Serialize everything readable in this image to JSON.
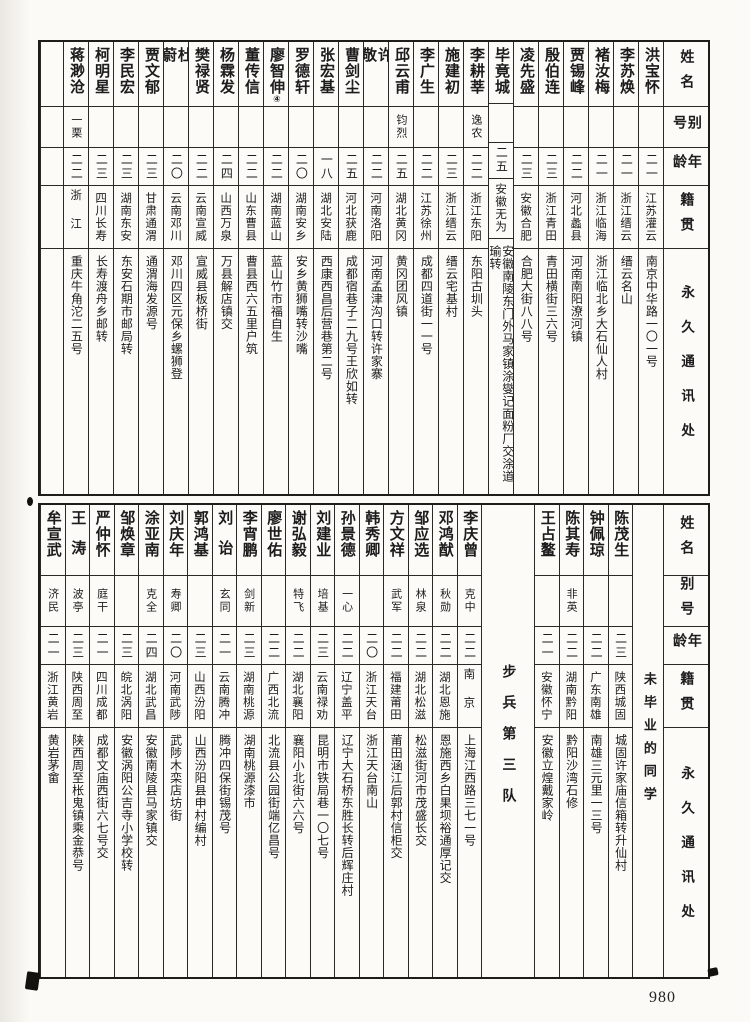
{
  "colors": {
    "paper": "#fbfaf6",
    "ink": "#1c1c1c",
    "border": "#2b2925"
  },
  "page_number": "980",
  "headers": {
    "name": "姓名",
    "alias": "别号",
    "age": "年龄",
    "native": "籍贯",
    "address": "永久通讯处"
  },
  "section_labels": {
    "not_graduated": "未毕业的同学",
    "squad": "步兵第三队"
  },
  "top_people": [
    {
      "name": "洪宝怀",
      "alias": "",
      "age": "二一",
      "native": "江苏灌云",
      "address": "南京中华路一〇一号"
    },
    {
      "name": "李苏焕",
      "alias": "",
      "age": "二一",
      "native": "浙江缙云",
      "address": "缙云名山"
    },
    {
      "name": "褚汝梅",
      "alias": "",
      "age": "二一",
      "native": "浙江临海",
      "address": "浙江临北乡大石仙人村"
    },
    {
      "name": "贾锡峰",
      "alias": "",
      "age": "二二",
      "native": "河北蠡县",
      "address": "河南南阳潦河镇"
    },
    {
      "name": "殷伯连",
      "alias": "",
      "age": "二三",
      "native": "浙江青田",
      "address": "青田横街三六号"
    },
    {
      "name": "凌先盛",
      "alias": "",
      "age": "二三",
      "native": "安徽合肥",
      "address": "合肥大街八八号"
    },
    {
      "name": "毕竟城",
      "alias": "",
      "age": "二五",
      "native": "安徽无为",
      "address": "安徽南陵东门外马家镇涂燮记面粉厂交涂道瑜转"
    },
    {
      "name": "李耕莘",
      "alias": "逸农",
      "age": "二二",
      "native": "浙江东阳",
      "address": "东阳古圳头"
    },
    {
      "name": "施建初",
      "alias": "",
      "age": "二三",
      "native": "浙江缙云",
      "address": "缙云宅基村"
    },
    {
      "name": "李广生",
      "alias": "",
      "age": "二二",
      "native": "江苏徐州",
      "address": "成都四道街一一号"
    },
    {
      "name": "邱云甫",
      "alias": "钧烈",
      "age": "二五",
      "native": "湖北黄冈",
      "address": "黄冈团风镇"
    },
    {
      "name": "许敬",
      "alias": "",
      "age": "二二",
      "native": "河南洛阳",
      "address": "河南孟津沟口转许家寨"
    },
    {
      "name": "曹剑尘",
      "alias": "",
      "age": "二五",
      "native": "河北获鹿",
      "address": "成都宿巷子二九号王欣如转"
    },
    {
      "name": "张宏基",
      "alias": "",
      "age": "一八",
      "native": "湖北安陆",
      "address": "西康西昌后营巷第二号"
    },
    {
      "name": "罗德轩",
      "alias": "",
      "age": "二〇",
      "native": "湖南安乡",
      "address": "安乡黄狮嘴转沙嘴"
    },
    {
      "name": "廖智伸",
      "marker": "④",
      "alias": "",
      "age": "二二",
      "native": "湖南蓝山",
      "address": "蓝山竹市福自生"
    },
    {
      "name": "董传信",
      "alias": "",
      "age": "二二",
      "native": "山东曹县",
      "address": "曹县西六五里户筑"
    },
    {
      "name": "杨霖发",
      "alias": "",
      "age": "二四",
      "native": "山西万泉",
      "address": "万县解店镇交"
    },
    {
      "name": "樊禄贤",
      "alias": "",
      "age": "二二",
      "native": "云南宣威",
      "address": "宣威县板桥街"
    },
    {
      "name": "杜蔚",
      "alias": "",
      "age": "二〇",
      "native": "云南邓川",
      "address": "邓川四区元保乡螺狮登"
    },
    {
      "name": "贾文郁",
      "alias": "",
      "age": "二三",
      "native": "甘肃通渭",
      "address": "通渭海发源号"
    },
    {
      "name": "李民宏",
      "alias": "",
      "age": "二三",
      "native": "湖南东安",
      "address": "东安石期市邮局转"
    },
    {
      "name": "柯明星",
      "alias": "",
      "age": "二三",
      "native": "四川长寿",
      "address": "长寿渡舟乡邮转"
    },
    {
      "name": "蒋渺沧",
      "alias": "一栗",
      "age": "二二",
      "native": "浙江",
      "address": "重庆牛角沱二五号"
    }
  ],
  "bottom_people_right": [
    {
      "name": "陈茂生",
      "alias": "",
      "age": "二三",
      "native": "陕西城固",
      "address": "城固许家庙信箱转升仙村"
    },
    {
      "name": "钟佩琼",
      "alias": "",
      "age": "二二",
      "native": "广东南雄",
      "address": "南雄三元里一三号"
    },
    {
      "name": "陈其寿",
      "alias": "非英",
      "age": "二二",
      "native": "湖南黔阳",
      "address": "黔阳沙湾石修"
    },
    {
      "name": "王占鳌",
      "alias": "",
      "age": "二一",
      "native": "安徽怀宁",
      "address": "安徽立煌戴家岭"
    }
  ],
  "bottom_people_left": [
    {
      "name": "李庆曾",
      "alias": "克中",
      "age": "二二",
      "native": "南京",
      "address": "上海江西路三七一号"
    },
    {
      "name": "邓鸿猷",
      "alias": "秋勋",
      "age": "二二",
      "native": "湖北恩施",
      "address": "恩施西乡白果坝裕通厚记交"
    },
    {
      "name": "邹应选",
      "alias": "林泉",
      "age": "二二",
      "native": "湖北松滋",
      "address": "松滋街河市茂盛长交"
    },
    {
      "name": "方文祥",
      "alias": "武军",
      "age": "二二",
      "native": "福建莆田",
      "address": "莆田涵江后郭村信柜交"
    },
    {
      "name": "韩秀卿",
      "alias": "",
      "age": "二〇",
      "native": "浙江天台",
      "address": "浙江天台南山"
    },
    {
      "name": "孙景德",
      "alias": "一心",
      "age": "二二",
      "native": "辽宁盖平",
      "address": "辽宁大石桥东胜长转后辉庄村"
    },
    {
      "name": "刘建业",
      "alias": "培基",
      "age": "二三",
      "native": "云南禄劝",
      "address": "昆明市铁局巷一〇七号"
    },
    {
      "name": "谢弘毅",
      "alias": "特飞",
      "age": "二二",
      "native": "湖北襄阳",
      "address": "襄阳小北街六六号"
    },
    {
      "name": "廖世佑",
      "alias": "",
      "age": "二二",
      "native": "广西北流",
      "address": "北流县公园街端亿昌号"
    },
    {
      "name": "李宵鹏",
      "alias": "剑新",
      "age": "二三",
      "native": "湖南桃源",
      "address": "湖南桃源漆市"
    },
    {
      "name": "刘诒",
      "alias": "玄同",
      "age": "二一",
      "native": "云南腾冲",
      "address": "腾冲四保街锡茂号"
    },
    {
      "name": "郭鸿基",
      "alias": "",
      "age": "二三",
      "native": "山西汾阳",
      "address": "山西汾阳县申村编村"
    },
    {
      "name": "刘庆年",
      "alias": "寿卿",
      "age": "二〇",
      "native": "河南武陟",
      "address": "武陟木栾店坊街"
    },
    {
      "name": "涂亚南",
      "alias": "克全",
      "age": "二四",
      "native": "湖北武昌",
      "address": "安徽南陵县马家镇交"
    },
    {
      "name": "邹焕章",
      "alias": "",
      "age": "二三",
      "native": "皖北涡阳",
      "address": "安徽涡阳公吉寺小学校转"
    },
    {
      "name": "严仲怀",
      "alias": "庭干",
      "age": "二一",
      "native": "四川成都",
      "address": "成都文庙西街六七号交"
    },
    {
      "name": "王涛",
      "alias": "波亭",
      "age": "二三",
      "native": "陕西周至",
      "address": "陕西周至枨鬼镇乘金恭号"
    },
    {
      "name": "牟宣武",
      "alias": "济民",
      "age": "二一",
      "native": "浙江黄岩",
      "address": "黄岩茅畲"
    }
  ]
}
